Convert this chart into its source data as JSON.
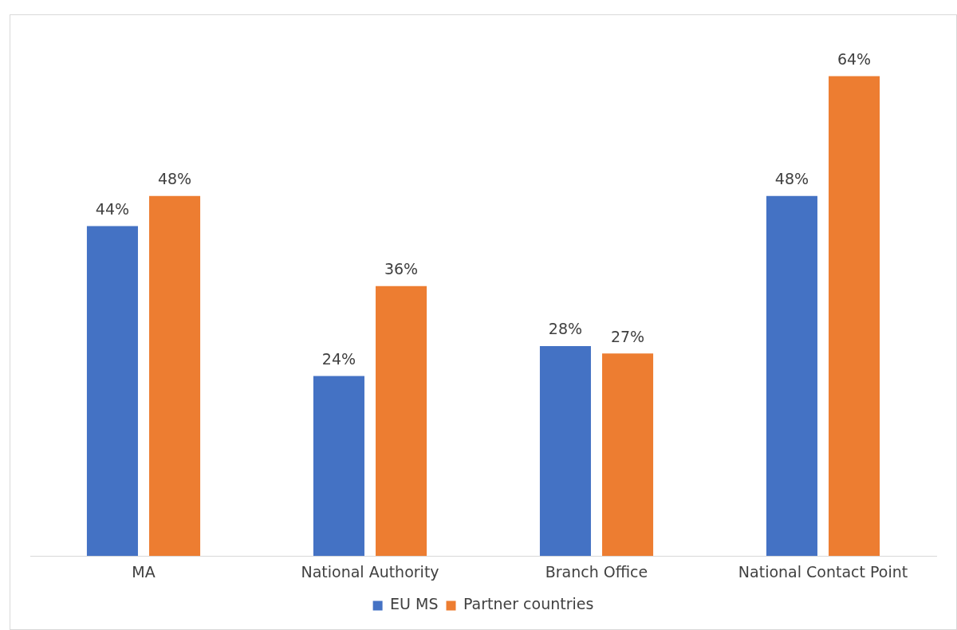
{
  "chart_data": {
    "type": "bar",
    "categories": [
      "MA",
      "National Authority",
      "Branch Office",
      "National Contact Point"
    ],
    "series": [
      {
        "name": "EU MS",
        "color": "#4472c4",
        "values": [
          44,
          24,
          28,
          48
        ],
        "value_labels": [
          "44%",
          "24%",
          "28%",
          "48%"
        ]
      },
      {
        "name": "Partner countries",
        "color": "#ed7d31",
        "values": [
          48,
          36,
          27,
          64
        ],
        "value_labels": [
          "48%",
          "36%",
          "27%",
          "64%"
        ]
      }
    ],
    "grid": false,
    "legend": "bottom"
  }
}
